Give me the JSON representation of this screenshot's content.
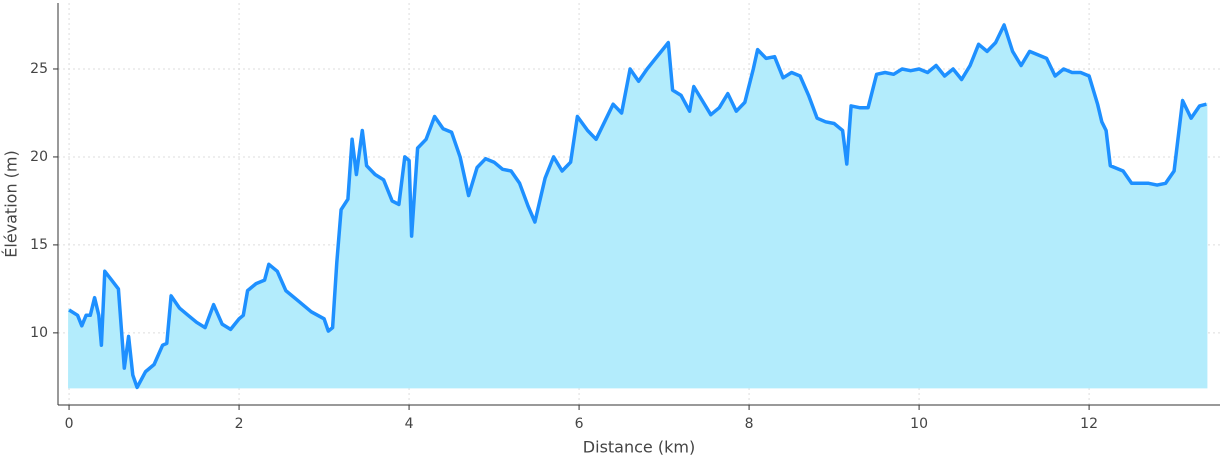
{
  "chart_data": {
    "type": "area",
    "x_label": "Distance (km)",
    "y_label": "Élévation (m)",
    "line_color": "#1e90ff",
    "fill_color": "#b3ecfc",
    "grid": true,
    "xlim": [
      -0.13,
      13.54
    ],
    "ylim": [
      5.9,
      28.75
    ],
    "xticks": [
      0,
      2,
      4,
      6,
      8,
      10,
      12
    ],
    "yticks": [
      10,
      15,
      20,
      25
    ],
    "x": [
      0.0,
      0.1,
      0.15,
      0.2,
      0.25,
      0.3,
      0.35,
      0.38,
      0.42,
      0.5,
      0.58,
      0.65,
      0.7,
      0.75,
      0.8,
      0.9,
      1.0,
      1.1,
      1.15,
      1.2,
      1.3,
      1.4,
      1.5,
      1.6,
      1.7,
      1.8,
      1.9,
      2.0,
      2.05,
      2.1,
      2.2,
      2.3,
      2.35,
      2.45,
      2.55,
      2.7,
      2.85,
      3.0,
      3.05,
      3.1,
      3.15,
      3.2,
      3.28,
      3.33,
      3.38,
      3.45,
      3.5,
      3.6,
      3.7,
      3.8,
      3.88,
      3.95,
      4.0,
      4.03,
      4.1,
      4.2,
      4.3,
      4.4,
      4.5,
      4.6,
      4.7,
      4.8,
      4.9,
      5.0,
      5.1,
      5.2,
      5.3,
      5.4,
      5.48,
      5.6,
      5.7,
      5.8,
      5.9,
      5.98,
      6.1,
      6.2,
      6.3,
      6.4,
      6.5,
      6.6,
      6.7,
      6.8,
      6.9,
      7.0,
      7.05,
      7.1,
      7.2,
      7.3,
      7.35,
      7.45,
      7.55,
      7.65,
      7.75,
      7.85,
      7.95,
      8.05,
      8.1,
      8.2,
      8.3,
      8.4,
      8.5,
      8.6,
      8.7,
      8.8,
      8.9,
      9.0,
      9.1,
      9.15,
      9.2,
      9.3,
      9.4,
      9.5,
      9.6,
      9.7,
      9.8,
      9.9,
      10.0,
      10.1,
      10.2,
      10.3,
      10.4,
      10.5,
      10.6,
      10.7,
      10.8,
      10.9,
      11.0,
      11.1,
      11.2,
      11.3,
      11.4,
      11.5,
      11.6,
      11.7,
      11.8,
      11.9,
      12.0,
      12.1,
      12.15,
      12.2,
      12.25,
      12.4,
      12.5,
      12.6,
      12.7,
      12.8,
      12.9,
      13.0,
      13.1,
      13.2,
      13.3,
      13.38
    ],
    "values": [
      11.3,
      11.0,
      10.4,
      11.0,
      11.0,
      12.0,
      11.0,
      9.3,
      13.5,
      13.0,
      12.5,
      8.0,
      9.8,
      7.6,
      6.9,
      7.8,
      8.2,
      9.3,
      9.4,
      12.1,
      11.4,
      11.0,
      10.6,
      10.3,
      11.6,
      10.5,
      10.2,
      10.8,
      11.0,
      12.4,
      12.8,
      13.0,
      13.9,
      13.5,
      12.4,
      11.8,
      11.2,
      10.8,
      10.1,
      10.3,
      14.0,
      17.0,
      17.6,
      21.0,
      19.0,
      21.5,
      19.5,
      19.0,
      18.7,
      17.5,
      17.3,
      20.0,
      19.8,
      15.5,
      20.5,
      21.0,
      22.3,
      21.6,
      21.4,
      20.0,
      17.8,
      19.4,
      19.9,
      19.7,
      19.3,
      19.2,
      18.5,
      17.2,
      16.3,
      18.8,
      20.0,
      19.2,
      19.7,
      22.3,
      21.5,
      21.0,
      22.0,
      23.0,
      22.5,
      25.0,
      24.3,
      25.0,
      25.6,
      26.2,
      26.5,
      23.8,
      23.5,
      22.6,
      24.0,
      23.2,
      22.4,
      22.8,
      23.6,
      22.6,
      23.1,
      25.0,
      26.1,
      25.6,
      25.7,
      24.5,
      24.8,
      24.6,
      23.5,
      22.2,
      22.0,
      21.9,
      21.5,
      19.6,
      22.9,
      22.8,
      22.8,
      24.7,
      24.8,
      24.7,
      25.0,
      24.9,
      25.0,
      24.8,
      25.2,
      24.6,
      25.0,
      24.4,
      25.2,
      26.4,
      26.0,
      26.5,
      27.5,
      26.0,
      25.2,
      26.0,
      25.8,
      25.6,
      24.6,
      25.0,
      24.8,
      24.8,
      24.6,
      23.0,
      22.0,
      21.5,
      19.5,
      19.2,
      18.5,
      18.5,
      18.5,
      18.4,
      18.5,
      19.2,
      23.2,
      22.2,
      22.9,
      23.0
    ]
  }
}
